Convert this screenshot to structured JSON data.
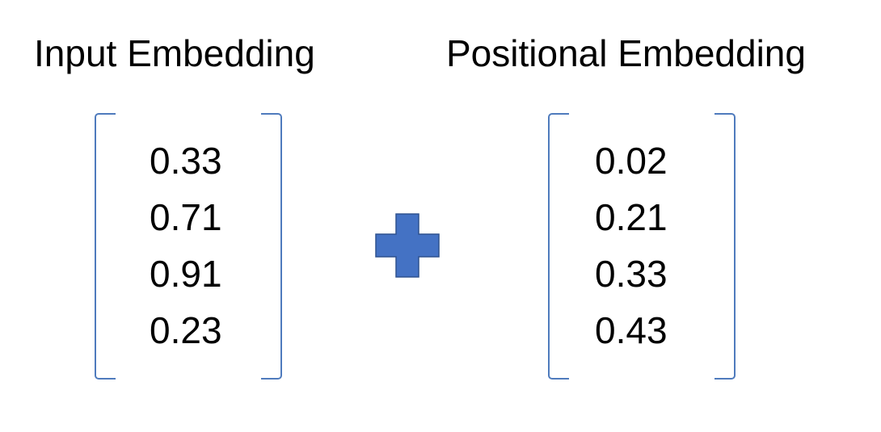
{
  "headings": {
    "left": "Input Embedding",
    "right": "Positional Embedding"
  },
  "input_embedding": {
    "values": [
      "0.33",
      "0.71",
      "0.91",
      "0.23"
    ]
  },
  "positional_embedding": {
    "values": [
      "0.02",
      "0.21",
      "0.33",
      "0.43"
    ]
  },
  "operator": {
    "icon": "plus-icon",
    "color": "#4472c4",
    "border_color": "#2f528f"
  },
  "bracket_color": "#4f7bbd"
}
